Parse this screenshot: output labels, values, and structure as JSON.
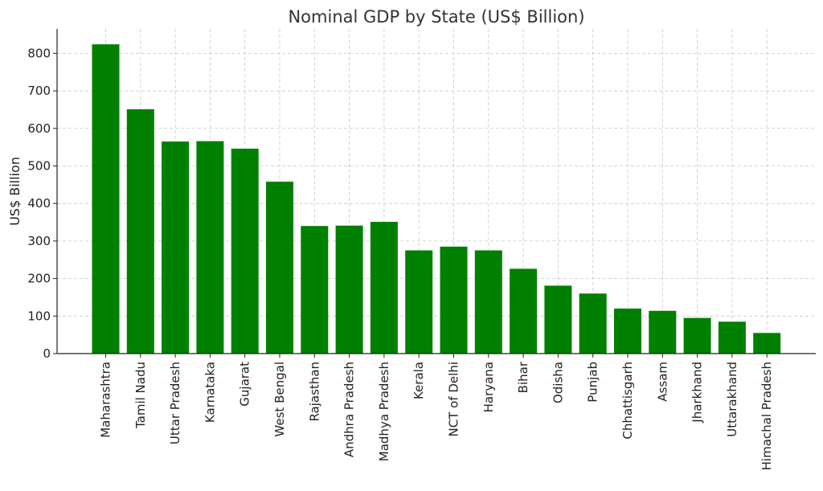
{
  "chart_data": {
    "type": "bar",
    "title": "Nominal GDP by State (US$ Billion)",
    "xlabel": "",
    "ylabel": "US$ Billion",
    "ylim": [
      0,
      865
    ],
    "yticks": [
      0,
      100,
      200,
      300,
      400,
      500,
      600,
      700,
      800
    ],
    "grid": true,
    "bar_color": "#008000",
    "categories": [
      "Maharashtra",
      "Tamil Nadu",
      "Uttar Pradesh",
      "Karnataka",
      "Gujarat",
      "West Bengal",
      "Rajasthan",
      "Andhra Pradesh",
      "Madhya Pradesh",
      "Kerala",
      "NCT of Delhi",
      "Haryana",
      "Bihar",
      "Odisha",
      "Punjab",
      "Chhattisgarh",
      "Assam",
      "Jharkhand",
      "Uttarakhand",
      "Himachal Pradesh"
    ],
    "values": [
      824,
      651,
      565,
      566,
      546,
      458,
      340,
      341,
      351,
      275,
      285,
      275,
      226,
      181,
      160,
      120,
      114,
      95,
      85,
      55
    ]
  }
}
